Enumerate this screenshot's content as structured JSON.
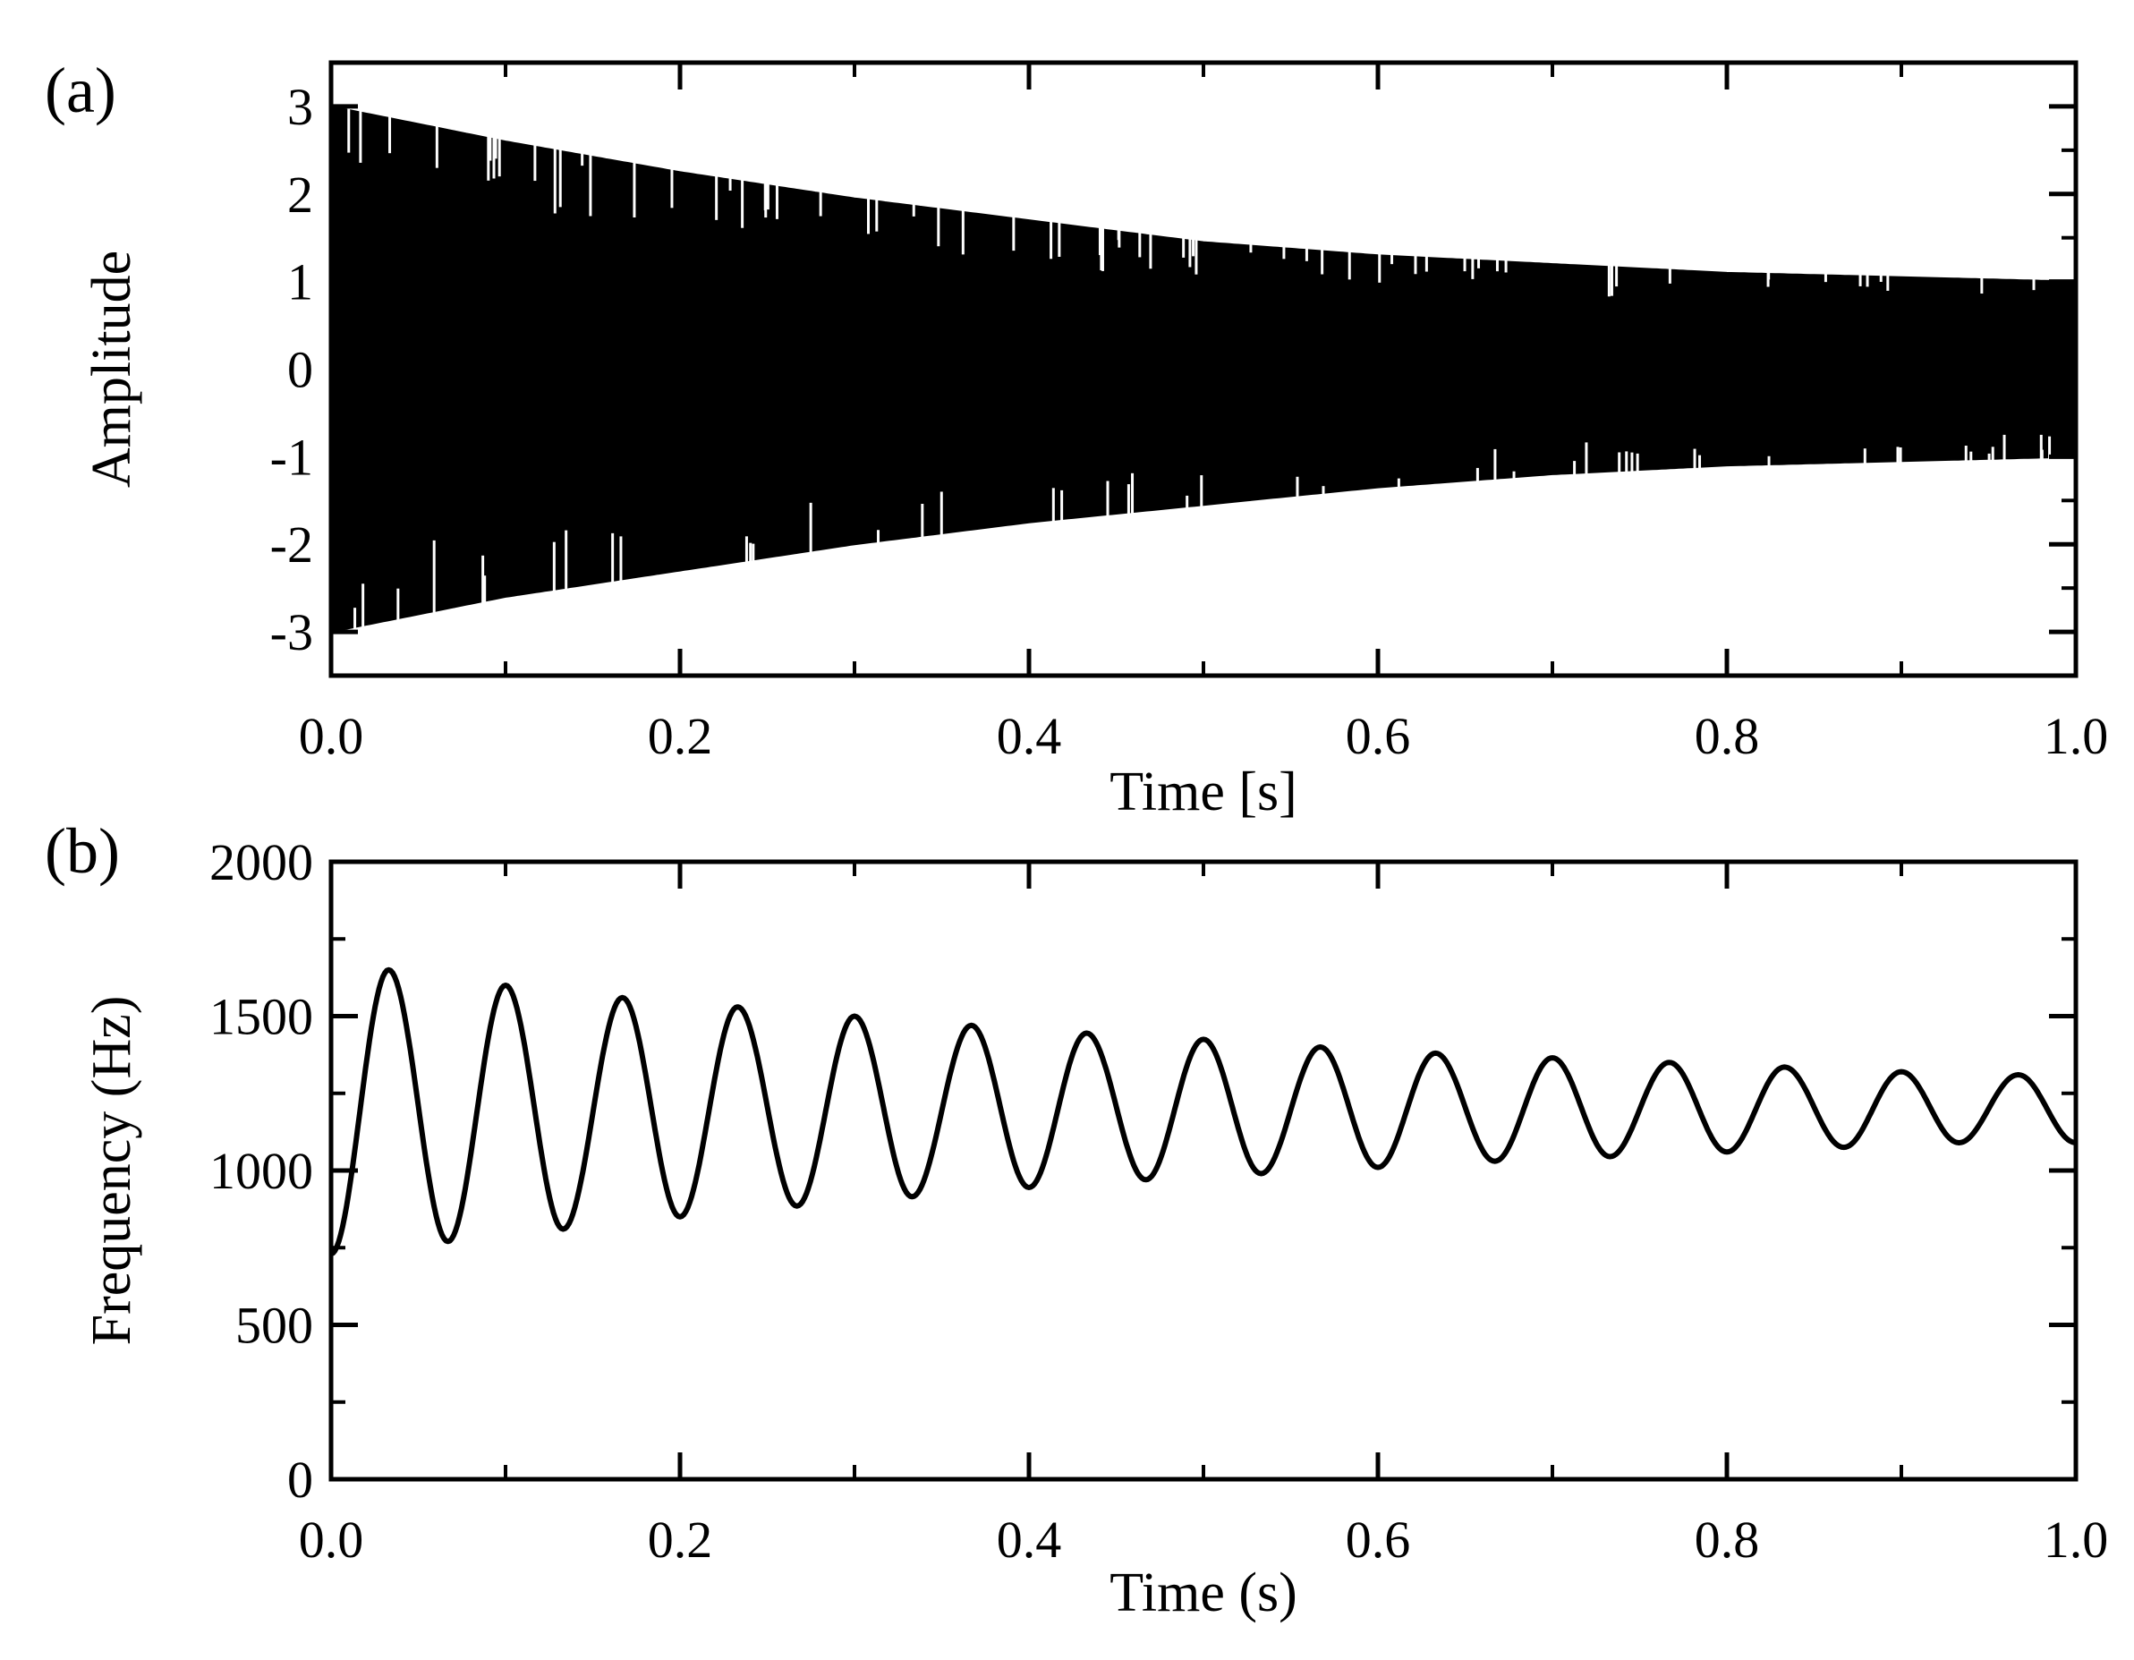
{
  "chart_data": [
    {
      "panel_label": "(a)",
      "type": "line",
      "xlabel": "Time [s]",
      "ylabel": "Amplitude",
      "xlim": [
        0.0,
        1.0
      ],
      "ylim": [
        -3.5,
        3.5
      ],
      "xticks": [
        "0.0",
        "0.2",
        "0.4",
        "0.6",
        "0.8",
        "1.0"
      ],
      "yticks": [
        "3",
        "2",
        "1",
        "0",
        "-1",
        "-2",
        "-3"
      ],
      "grid": false,
      "series": [
        {
          "description_of_values": "decaying envelope",
          "color": "#000000",
          "envelope_t": [
            0.0,
            0.1,
            0.2,
            0.3,
            0.4,
            0.5,
            0.6,
            0.7,
            0.8,
            0.9,
            1.0
          ],
          "envelope_upper": [
            3.0,
            2.6,
            2.25,
            1.95,
            1.7,
            1.45,
            1.3,
            1.2,
            1.1,
            1.05,
            1.0
          ],
          "envelope_lower": [
            -3.0,
            -2.6,
            -2.3,
            -2.0,
            -1.75,
            -1.55,
            -1.35,
            -1.2,
            -1.1,
            -1.05,
            -1.0
          ]
        }
      ]
    },
    {
      "panel_label": "(b)",
      "type": "line",
      "xlabel": "Time (s)",
      "ylabel": "Frequency (Hz)",
      "xlim": [
        0.0,
        1.0
      ],
      "ylim": [
        0,
        2000
      ],
      "xticks": [
        "0.0",
        "0.2",
        "0.4",
        "0.6",
        "0.8",
        "1.0"
      ],
      "yticks": [
        "2000",
        "1500",
        "1000",
        "500",
        "0"
      ],
      "grid": false,
      "series": [
        {
          "color": "#000000",
          "oscillation_period_s": 0.0667,
          "mean_hz": 1200,
          "t_peaks": [
            0.033,
            0.1,
            0.167,
            0.233,
            0.3,
            0.367,
            0.433,
            0.5,
            0.567,
            0.633,
            0.7,
            0.767,
            0.833,
            0.9,
            0.967
          ],
          "peak_values": [
            1650,
            1600,
            1560,
            1530,
            1500,
            1470,
            1445,
            1425,
            1400,
            1380,
            1365,
            1350,
            1335,
            1320,
            1310
          ],
          "t_troughs": [
            0.067,
            0.133,
            0.2,
            0.267,
            0.333,
            0.4,
            0.467,
            0.533,
            0.6,
            0.667,
            0.733,
            0.8,
            0.867,
            0.933
          ],
          "trough_values": [
            770,
            810,
            850,
            885,
            915,
            945,
            970,
            990,
            1010,
            1030,
            1045,
            1060,
            1075,
            1090
          ],
          "start": [
            0.0,
            730
          ],
          "end": [
            1.0,
            1090
          ]
        }
      ]
    }
  ]
}
